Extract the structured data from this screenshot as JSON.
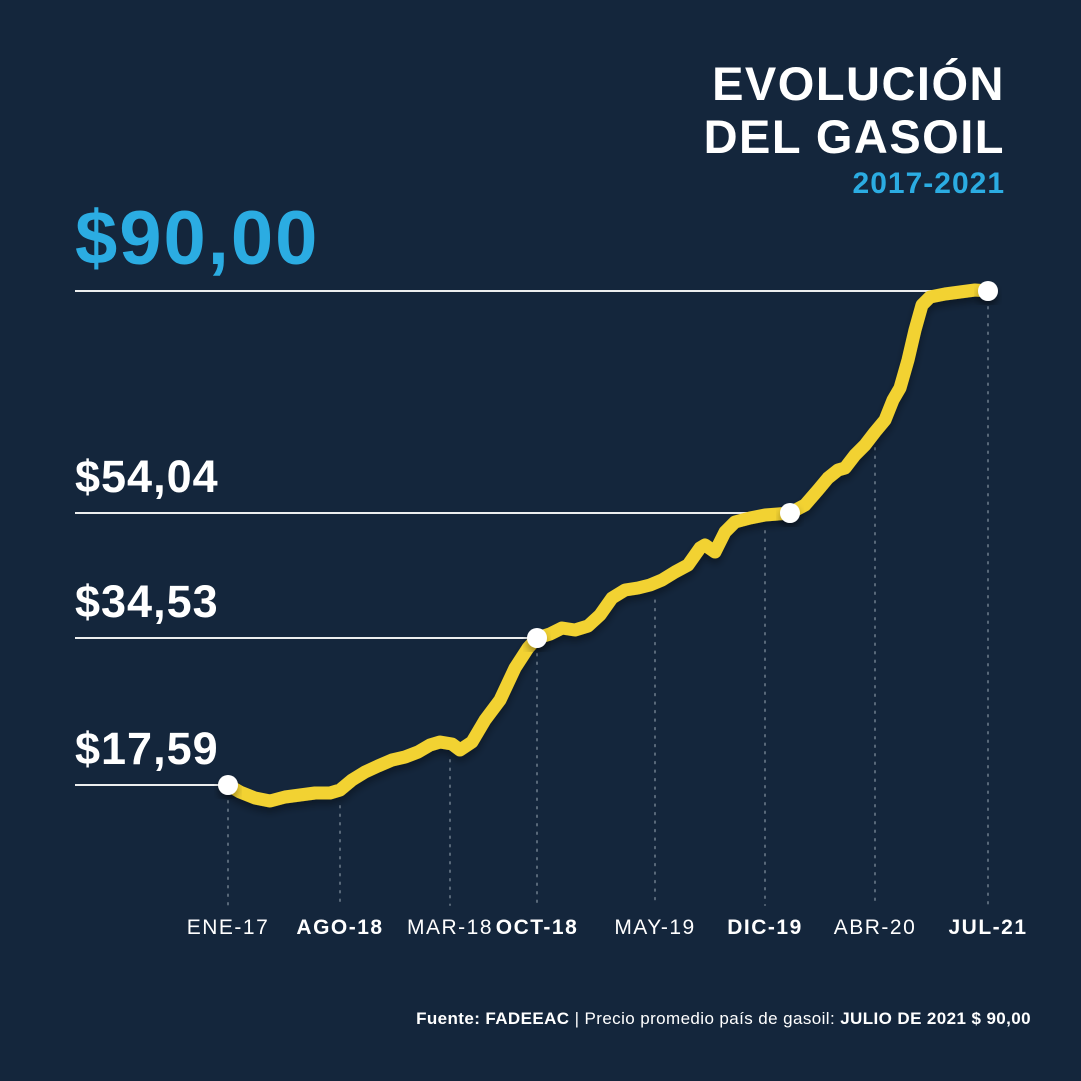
{
  "colors": {
    "background": "#14263C",
    "accent_blue": "#2BACE2",
    "line_yellow": "#F2D230",
    "text_white": "#FFFFFF"
  },
  "title": {
    "line1": "EVOLUCIÓN",
    "line2": "DEL GASOIL",
    "subtitle": "2017-2021"
  },
  "footer": {
    "fuente_label": "Fuente:",
    "source": "FADEEAC",
    "separator": "|",
    "description": "Precio promedio país de gasoil:",
    "highlight": "JULIO DE 2021 $ 90,00"
  },
  "chart_data": {
    "type": "line",
    "title": "EVOLUCIÓN DEL GASOIL",
    "subtitle": "2017-2021",
    "line_color": "#F2D230",
    "marker_color": "#FFFFFF",
    "dash_color": "#93A0AD",
    "dash_baseline_y": 905,
    "ylim": [
      15,
      92
    ],
    "calibration": [
      {
        "value": 17.59,
        "y": 785
      },
      {
        "value": 34.53,
        "y": 638
      },
      {
        "value": 54.04,
        "y": 513
      },
      {
        "value": 90.0,
        "y": 291
      }
    ],
    "ref_lines": [
      {
        "label": "$90,00",
        "value": 90.0,
        "x_start": 75,
        "x_end": 988,
        "big": true
      },
      {
        "label": "$54,04",
        "value": 54.04,
        "x_start": 75,
        "x_end": 790,
        "big": false
      },
      {
        "label": "$34,53",
        "value": 34.53,
        "x_start": 75,
        "x_end": 537,
        "big": false
      },
      {
        "label": "$17,59",
        "value": 17.59,
        "x_start": 75,
        "x_end": 228,
        "big": false
      }
    ],
    "x_axis": [
      {
        "x": 228,
        "label": "ENE-17",
        "bold": false,
        "value": 17.59
      },
      {
        "x": 340,
        "label": "AGO-18",
        "bold": true,
        "value": 17.01
      },
      {
        "x": 450,
        "label": "MAR-18",
        "bold": false,
        "value": 22.31
      },
      {
        "x": 537,
        "label": "OCT-18",
        "bold": true,
        "value": 34.53
      },
      {
        "x": 655,
        "label": "MAY-19",
        "bold": false,
        "value": 42.9
      },
      {
        "x": 765,
        "label": "DIC-19",
        "bold": true,
        "value": 53.73
      },
      {
        "x": 875,
        "label": "ABR-20",
        "bold": false,
        "value": 67.16
      },
      {
        "x": 988,
        "label": "JUL-21",
        "bold": true,
        "value": 90.0
      }
    ],
    "series": [
      {
        "name": "Precio promedio país de gasoil",
        "points": [
          [
            228,
            17.59
          ],
          [
            240,
            16.78
          ],
          [
            255,
            16.09
          ],
          [
            270,
            15.75
          ],
          [
            285,
            16.21
          ],
          [
            300,
            16.44
          ],
          [
            315,
            16.67
          ],
          [
            330,
            16.67
          ],
          [
            340,
            17.01
          ],
          [
            352,
            18.17
          ],
          [
            365,
            19.09
          ],
          [
            378,
            19.78
          ],
          [
            392,
            20.47
          ],
          [
            405,
            20.82
          ],
          [
            418,
            21.39
          ],
          [
            430,
            22.2
          ],
          [
            440,
            22.54
          ],
          [
            452,
            22.31
          ],
          [
            460,
            21.62
          ],
          [
            472,
            22.54
          ],
          [
            485,
            25.08
          ],
          [
            500,
            27.38
          ],
          [
            515,
            31.07
          ],
          [
            528,
            33.38
          ],
          [
            537,
            34.53
          ],
          [
            550,
            35.15
          ],
          [
            562,
            36.09
          ],
          [
            575,
            35.78
          ],
          [
            588,
            36.4
          ],
          [
            600,
            38.12
          ],
          [
            612,
            40.77
          ],
          [
            625,
            42.02
          ],
          [
            638,
            42.33
          ],
          [
            650,
            42.8
          ],
          [
            662,
            43.58
          ],
          [
            675,
            44.83
          ],
          [
            688,
            45.92
          ],
          [
            700,
            48.58
          ],
          [
            705,
            49.04
          ],
          [
            715,
            47.95
          ],
          [
            725,
            51.07
          ],
          [
            735,
            52.63
          ],
          [
            750,
            53.26
          ],
          [
            765,
            53.73
          ],
          [
            778,
            53.88
          ],
          [
            790,
            54.04
          ],
          [
            805,
            55.34
          ],
          [
            818,
            57.77
          ],
          [
            828,
            59.71
          ],
          [
            838,
            61.01
          ],
          [
            845,
            61.33
          ],
          [
            855,
            63.44
          ],
          [
            865,
            65.05
          ],
          [
            875,
            67.16
          ],
          [
            885,
            69.1
          ],
          [
            893,
            72.34
          ],
          [
            900,
            74.29
          ],
          [
            908,
            78.82
          ],
          [
            915,
            83.68
          ],
          [
            922,
            87.73
          ],
          [
            930,
            89.03
          ],
          [
            945,
            89.51
          ],
          [
            960,
            89.84
          ],
          [
            975,
            90.16
          ],
          [
            988,
            90.0
          ]
        ]
      }
    ],
    "markers": [
      [
        228,
        17.59
      ],
      [
        537,
        34.53
      ],
      [
        790,
        54.04
      ],
      [
        988,
        90.0
      ]
    ]
  }
}
